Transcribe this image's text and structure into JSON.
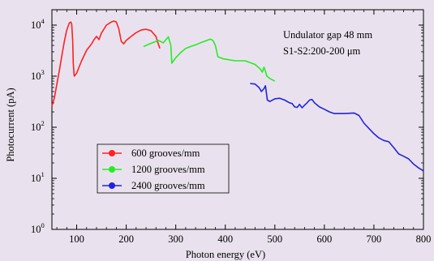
{
  "chart_data": {
    "type": "line",
    "xlabel": "Photon energy (eV)",
    "ylabel": "Photocurrent (pA)",
    "x_scale": "linear",
    "y_scale": "log",
    "xlim": [
      50,
      800
    ],
    "ylim": [
      1,
      20000
    ],
    "x_ticks": [
      100,
      200,
      300,
      400,
      500,
      600,
      700,
      800
    ],
    "y_ticks": [
      {
        "value": 1,
        "mantissa": "10",
        "exponent": "0"
      },
      {
        "value": 10,
        "mantissa": "10",
        "exponent": "1"
      },
      {
        "value": 100,
        "mantissa": "10",
        "exponent": "2"
      },
      {
        "value": 1000,
        "mantissa": "10",
        "exponent": "3"
      },
      {
        "value": 10000,
        "mantissa": "10",
        "exponent": "4"
      }
    ],
    "annotations": [
      "Undulator gap 48 mm",
      "S1-S2:200-200 μm"
    ],
    "legend_position": "lower-left",
    "background_color": "#e9e2ee",
    "series": [
      {
        "name": "600 grooves/mm",
        "color": "#ff2020",
        "points": [
          [
            50,
            260
          ],
          [
            55,
            380
          ],
          [
            60,
            700
          ],
          [
            65,
            1300
          ],
          [
            70,
            2500
          ],
          [
            75,
            4800
          ],
          [
            80,
            8000
          ],
          [
            85,
            11000
          ],
          [
            88,
            11500
          ],
          [
            90,
            10500
          ],
          [
            92,
            5000
          ],
          [
            93,
            1800
          ],
          [
            95,
            1000
          ],
          [
            100,
            1150
          ],
          [
            110,
            2000
          ],
          [
            120,
            3200
          ],
          [
            130,
            4300
          ],
          [
            135,
            5200
          ],
          [
            140,
            6000
          ],
          [
            145,
            5200
          ],
          [
            150,
            7000
          ],
          [
            160,
            10000
          ],
          [
            170,
            11500
          ],
          [
            175,
            12000
          ],
          [
            180,
            11500
          ],
          [
            185,
            8500
          ],
          [
            190,
            4800
          ],
          [
            195,
            4300
          ],
          [
            200,
            5000
          ],
          [
            210,
            6000
          ],
          [
            220,
            7100
          ],
          [
            230,
            8000
          ],
          [
            240,
            8300
          ],
          [
            250,
            7800
          ],
          [
            260,
            6000
          ],
          [
            265,
            4200
          ],
          [
            268,
            3500
          ]
        ]
      },
      {
        "name": "1200 grooves/mm",
        "color": "#22ee22",
        "points": [
          [
            235,
            3800
          ],
          [
            245,
            4200
          ],
          [
            255,
            4600
          ],
          [
            265,
            5000
          ],
          [
            275,
            4500
          ],
          [
            280,
            5200
          ],
          [
            285,
            5900
          ],
          [
            290,
            4000
          ],
          [
            292,
            1800
          ],
          [
            300,
            2300
          ],
          [
            310,
            2900
          ],
          [
            320,
            3500
          ],
          [
            330,
            3800
          ],
          [
            340,
            4100
          ],
          [
            350,
            4500
          ],
          [
            360,
            4900
          ],
          [
            370,
            5300
          ],
          [
            375,
            5000
          ],
          [
            380,
            4000
          ],
          [
            385,
            2400
          ],
          [
            395,
            2200
          ],
          [
            420,
            2000
          ],
          [
            440,
            2000
          ],
          [
            460,
            1700
          ],
          [
            470,
            1400
          ],
          [
            475,
            1200
          ],
          [
            478,
            1500
          ],
          [
            481,
            1250
          ],
          [
            484,
            1000
          ],
          [
            490,
            900
          ],
          [
            500,
            800
          ]
        ]
      },
      {
        "name": "2400 grooves/mm",
        "color": "#2222dd",
        "points": [
          [
            450,
            720
          ],
          [
            460,
            700
          ],
          [
            468,
            600
          ],
          [
            473,
            500
          ],
          [
            478,
            570
          ],
          [
            481,
            650
          ],
          [
            485,
            340
          ],
          [
            490,
            320
          ],
          [
            500,
            360
          ],
          [
            510,
            370
          ],
          [
            520,
            340
          ],
          [
            530,
            300
          ],
          [
            535,
            290
          ],
          [
            540,
            250
          ],
          [
            545,
            245
          ],
          [
            550,
            280
          ],
          [
            555,
            240
          ],
          [
            560,
            270
          ],
          [
            565,
            300
          ],
          [
            570,
            340
          ],
          [
            575,
            350
          ],
          [
            580,
            300
          ],
          [
            590,
            250
          ],
          [
            600,
            225
          ],
          [
            610,
            200
          ],
          [
            620,
            185
          ],
          [
            640,
            185
          ],
          [
            660,
            190
          ],
          [
            670,
            170
          ],
          [
            680,
            120
          ],
          [
            690,
            95
          ],
          [
            700,
            75
          ],
          [
            710,
            62
          ],
          [
            720,
            55
          ],
          [
            730,
            52
          ],
          [
            740,
            40
          ],
          [
            750,
            30
          ],
          [
            760,
            27
          ],
          [
            770,
            24
          ],
          [
            780,
            19
          ],
          [
            790,
            16
          ],
          [
            800,
            14
          ]
        ]
      }
    ]
  }
}
